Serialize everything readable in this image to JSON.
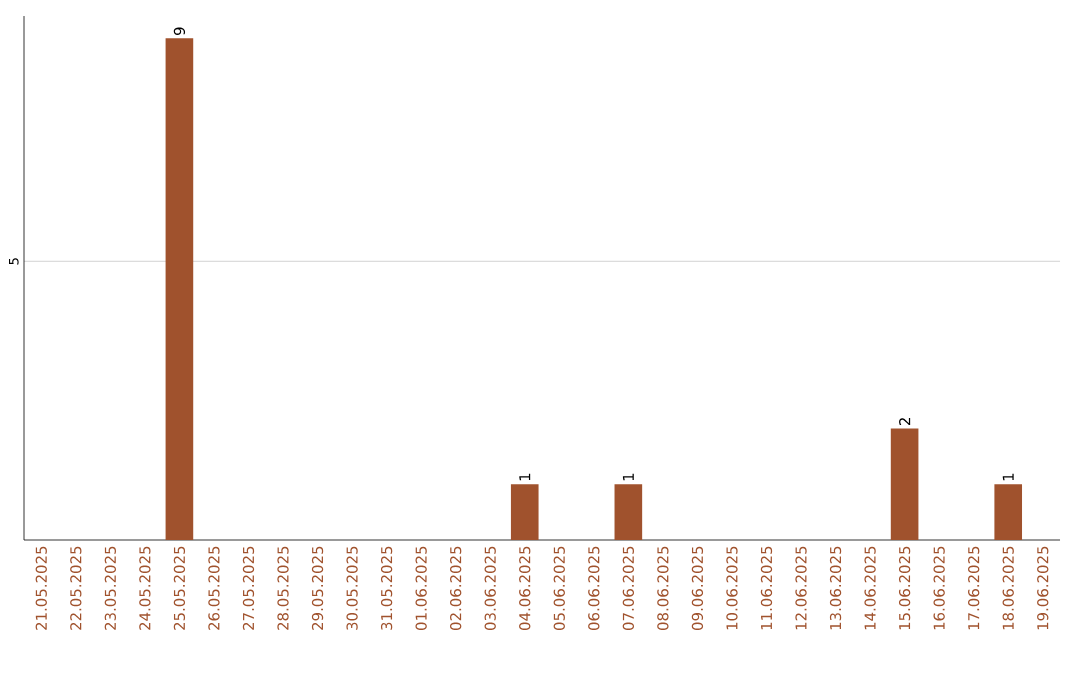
{
  "chart_data": {
    "type": "bar",
    "categories": [
      "21.05.2025",
      "22.05.2025",
      "23.05.2025",
      "24.05.2025",
      "25.05.2025",
      "26.05.2025",
      "27.05.2025",
      "28.05.2025",
      "29.05.2025",
      "30.05.2025",
      "31.05.2025",
      "01.06.2025",
      "02.06.2025",
      "03.06.2025",
      "04.06.2025",
      "05.06.2025",
      "06.06.2025",
      "07.06.2025",
      "08.06.2025",
      "09.06.2025",
      "10.06.2025",
      "11.06.2025",
      "12.06.2025",
      "13.06.2025",
      "14.06.2025",
      "15.06.2025",
      "16.06.2025",
      "17.06.2025",
      "18.06.2025",
      "19.06.2025"
    ],
    "values": [
      0,
      0,
      0,
      0,
      9,
      0,
      0,
      0,
      0,
      0,
      0,
      0,
      0,
      0,
      1,
      0,
      0,
      1,
      0,
      0,
      0,
      0,
      0,
      0,
      0,
      2,
      0,
      0,
      1,
      0
    ],
    "value_labels": [
      null,
      null,
      null,
      null,
      "9",
      null,
      null,
      null,
      null,
      null,
      null,
      null,
      null,
      null,
      "1",
      null,
      null,
      "1",
      null,
      null,
      null,
      null,
      null,
      null,
      null,
      "2",
      null,
      null,
      "1",
      null
    ],
    "color": "#a0522d",
    "ylim": [
      0,
      9.4
    ],
    "yticks": [
      5
    ],
    "grid": "y"
  }
}
